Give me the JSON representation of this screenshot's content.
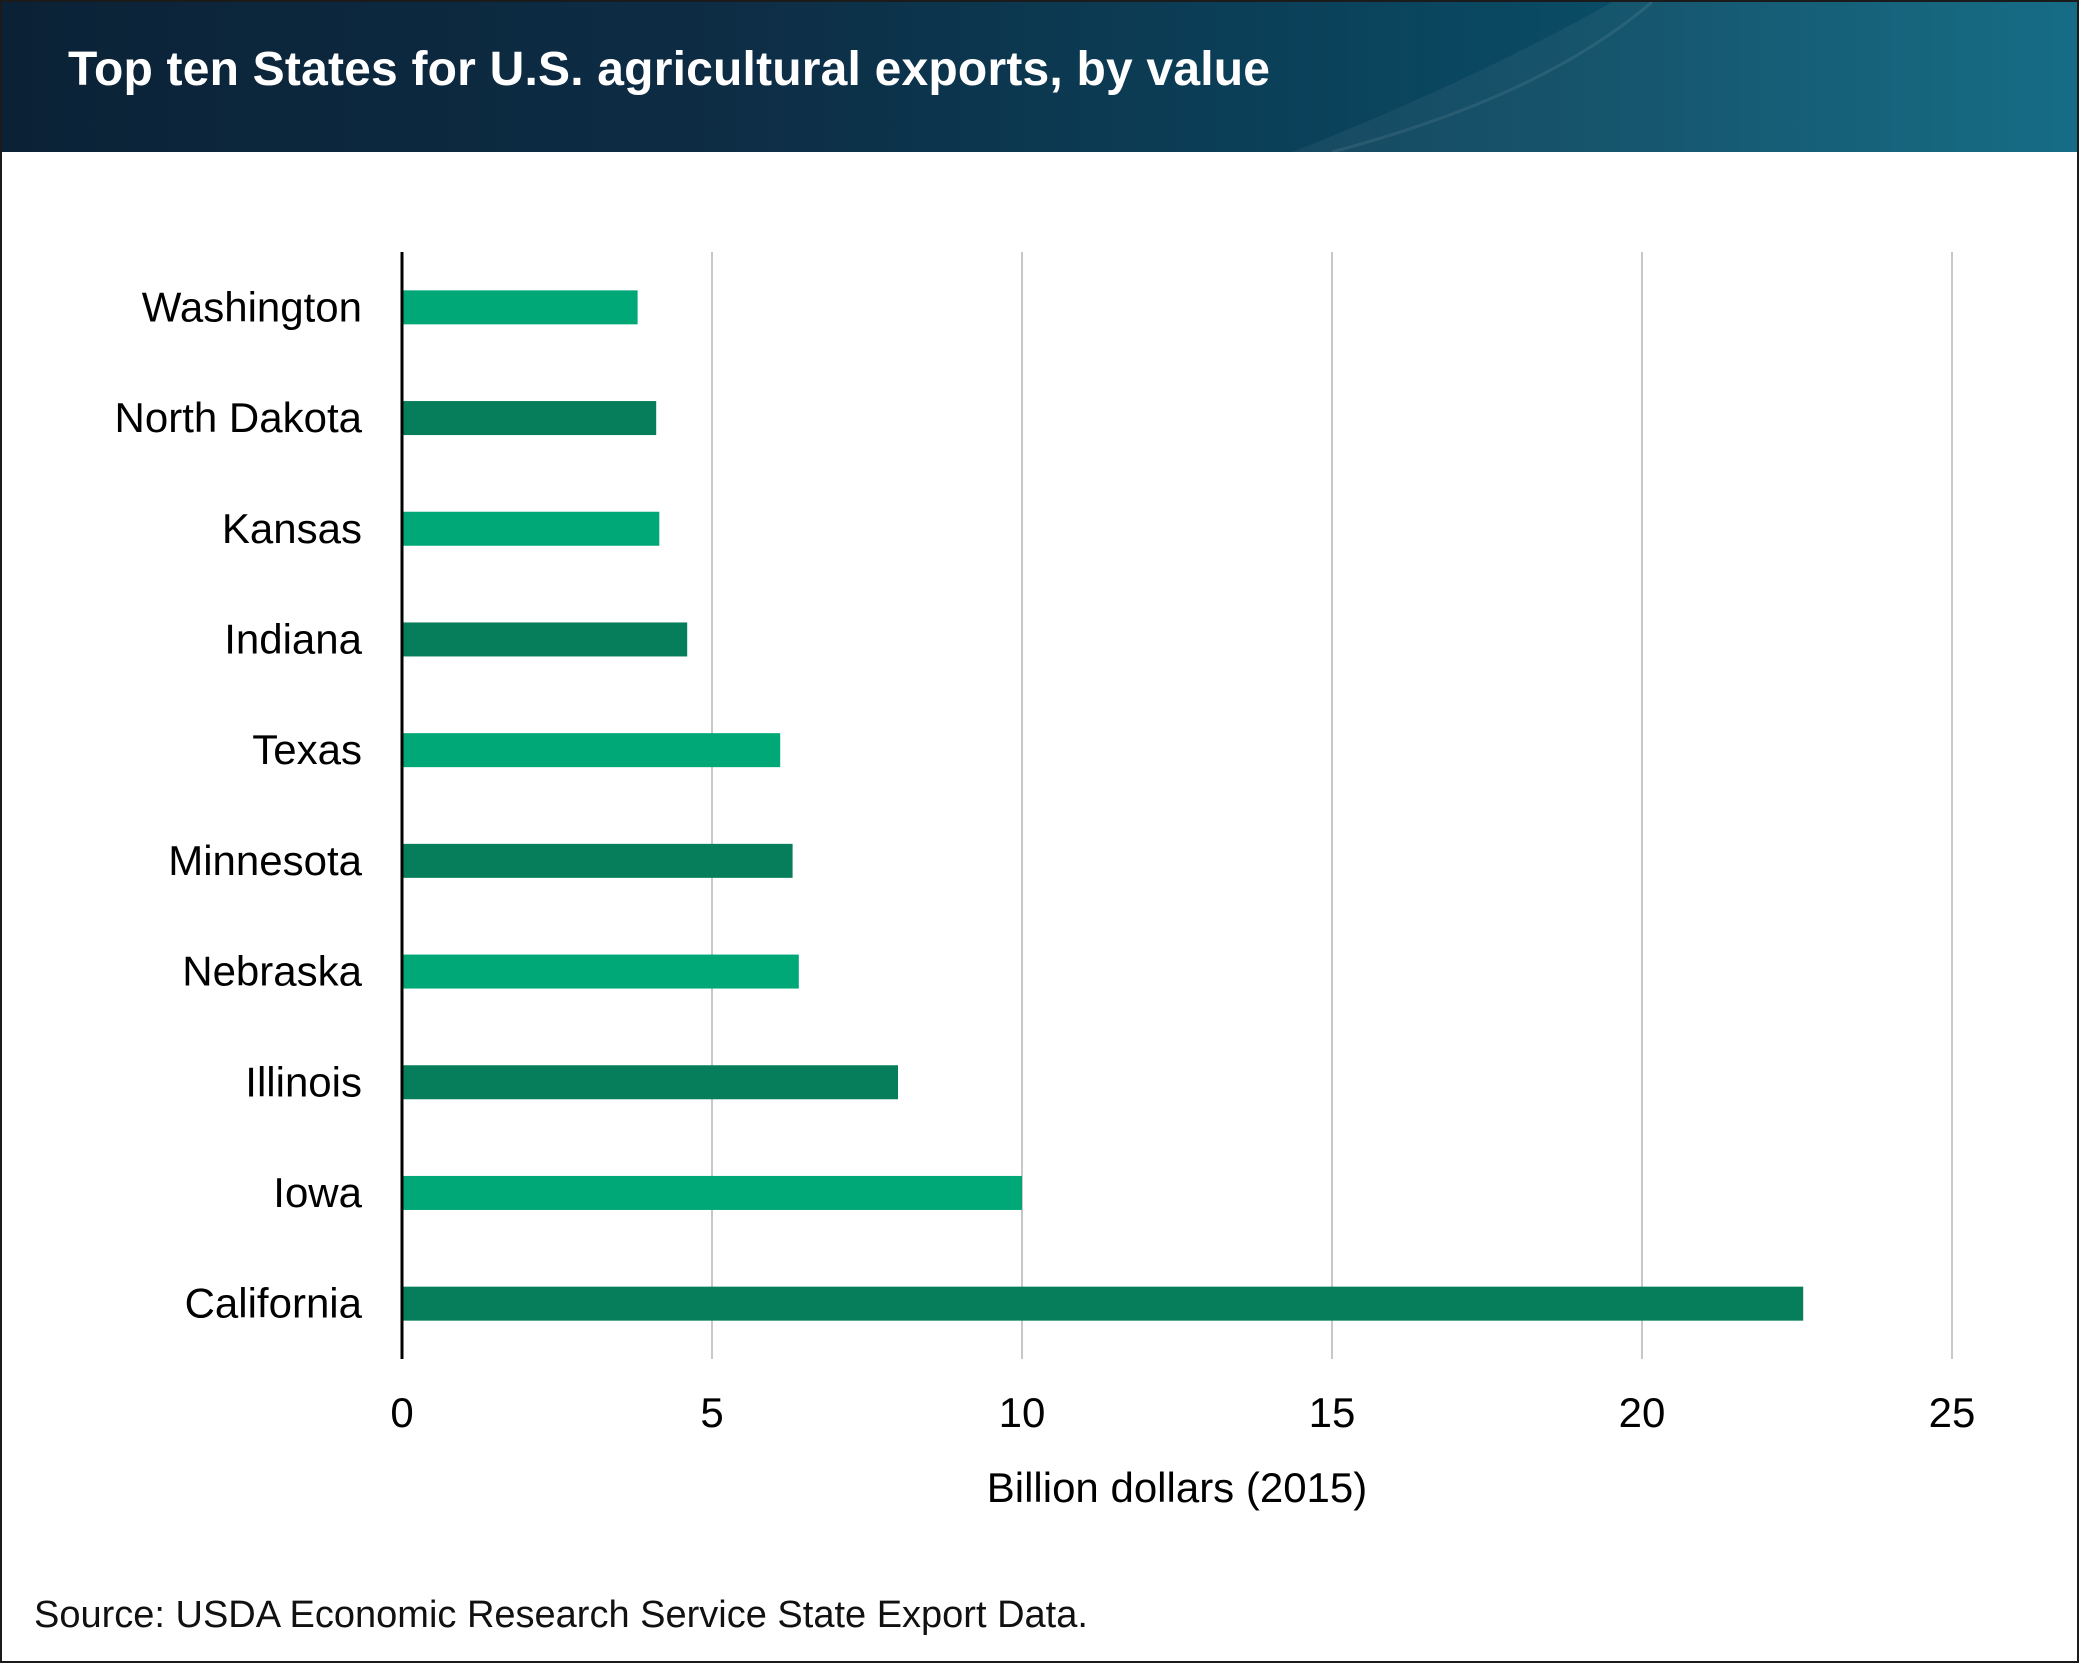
{
  "header": {
    "title": "Top ten States for U.S. agricultural exports, by value"
  },
  "footer": {
    "source": "Source: USDA Economic Research Service State Export Data."
  },
  "colors": {
    "bar_light": "#00a878",
    "bar_dark": "#067e5b",
    "grid": "#c8c8c8",
    "axis": "#000000"
  },
  "chart_data": {
    "type": "bar",
    "orientation": "horizontal",
    "title": "Top ten States for U.S. agricultural exports, by value",
    "xlabel": "Billion dollars (2015)",
    "ylabel": "",
    "xlim": [
      0,
      25
    ],
    "xticks": [
      0,
      5,
      10,
      15,
      20,
      25
    ],
    "grid": true,
    "categories": [
      "Washington",
      "North Dakota",
      "Kansas",
      "Indiana",
      "Texas",
      "Minnesota",
      "Nebraska",
      "Illinois",
      "Iowa",
      "California"
    ],
    "values": [
      3.8,
      4.1,
      4.15,
      4.6,
      6.1,
      6.3,
      6.4,
      8.0,
      10.0,
      22.6
    ]
  }
}
